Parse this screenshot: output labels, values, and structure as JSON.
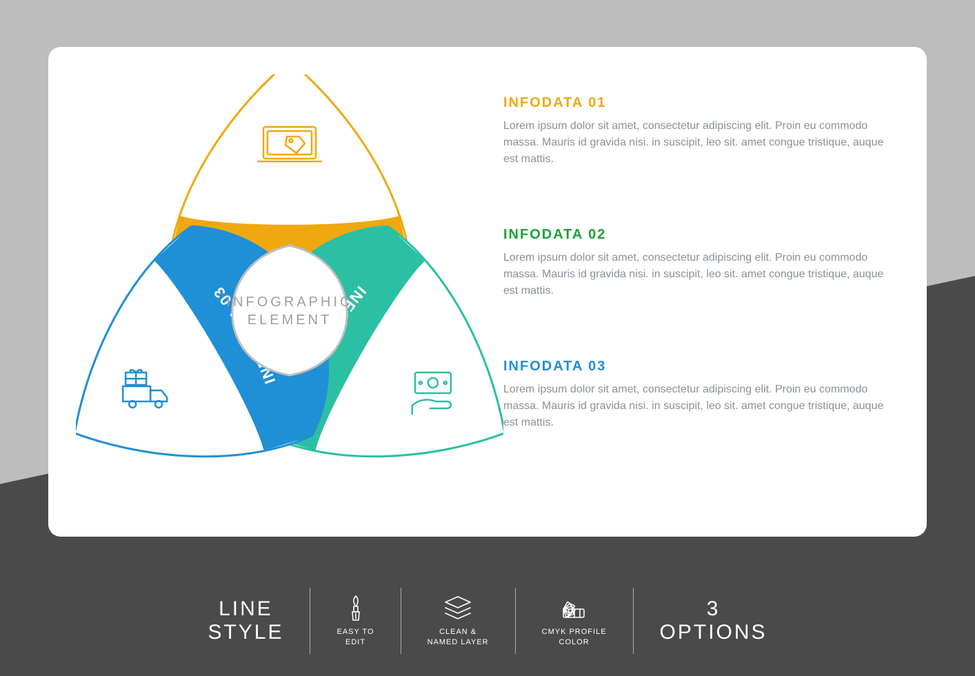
{
  "background": {
    "light": "#bdbdbd",
    "dark": "#4a4a4a",
    "card": "#ffffff"
  },
  "diagram": {
    "center_line1": "INFOGRAPHIC",
    "center_line2": "ELEMENT",
    "center_color": "#9e9e9e",
    "center_stroke": "#bfbfbf",
    "petals": [
      {
        "id": "p1",
        "label": "INFODATA 01",
        "color": "#f0a80f",
        "icon": "laptop-tag",
        "angle": 0
      },
      {
        "id": "p2",
        "label": "INFODATA 02",
        "color": "#2bbfa3",
        "icon": "hand-money",
        "angle": 120
      },
      {
        "id": "p3",
        "label": "INFODATA 03",
        "color": "#1f8fd6",
        "icon": "truck-gift",
        "angle": 240
      }
    ],
    "label_fontsize": 22,
    "stroke_width": 3
  },
  "entries": [
    {
      "title": "INFODATA 01",
      "color": "#f0a80f",
      "body": "Lorem ipsum dolor sit amet, consectetur adipiscing elit. Proin eu commodo massa. Mauris id gravida nisi. in suscipit, leo sit. amet congue tristique, auque est mattis."
    },
    {
      "title": "INFODATA 02",
      "color": "#17a336",
      "body": "Lorem ipsum dolor sit amet, consectetur adipiscing elit. Proin eu commodo massa. Mauris id gravida nisi. in suscipit, leo sit. amet congue tristique, auque est mattis."
    },
    {
      "title": "INFODATA 03",
      "color": "#1f8fd6",
      "body": "Lorem ipsum dolor sit amet, consectetur adipiscing elit. Proin eu commodo massa. Mauris id gravida nisi. in suscipit, leo sit. amet congue tristique, auque est mattis."
    }
  ],
  "footer": {
    "left_line1": "LINE",
    "left_line2": "STYLE",
    "features": [
      {
        "icon": "brush",
        "label": "EASY TO\nEDIT"
      },
      {
        "icon": "layers",
        "label": "CLEAN &\nNAMED LAYER"
      },
      {
        "icon": "swatch",
        "label": "CMYK PROFILE\nCOLOR"
      }
    ],
    "right_line1": "3",
    "right_line2": "OPTIONS"
  }
}
